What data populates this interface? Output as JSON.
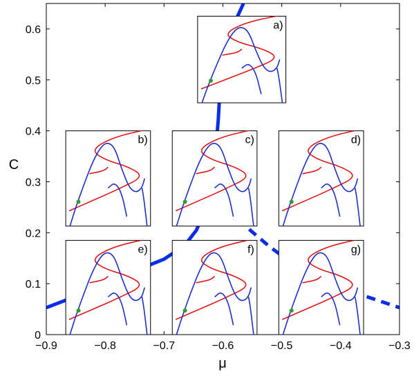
{
  "chart_data": {
    "type": "line",
    "xlabel": "μ",
    "ylabel": "C",
    "xlim": [
      -0.9,
      -0.3
    ],
    "ylim": [
      0,
      0.65
    ],
    "xticks": [
      {
        "v": -0.9,
        "label": "−0.9"
      },
      {
        "v": -0.8,
        "label": "−0.8"
      },
      {
        "v": -0.7,
        "label": "−0.7"
      },
      {
        "v": -0.6,
        "label": "−0.6"
      },
      {
        "v": -0.5,
        "label": "−0.5"
      },
      {
        "v": -0.4,
        "label": "−0.4"
      },
      {
        "v": -0.3,
        "label": "−0.3"
      }
    ],
    "yticks": [
      {
        "v": 0,
        "label": "0"
      },
      {
        "v": 0.1,
        "label": "0.1"
      },
      {
        "v": 0.2,
        "label": "0.2"
      },
      {
        "v": 0.3,
        "label": "0.3"
      },
      {
        "v": 0.4,
        "label": "0.4"
      },
      {
        "v": 0.5,
        "label": "0.5"
      },
      {
        "v": 0.6,
        "label": "0.6"
      }
    ],
    "series": [
      {
        "style": "solid",
        "color": "#0a2ee6",
        "points": [
          [
            -0.9,
            0.053
          ],
          [
            -0.85,
            0.075
          ],
          [
            -0.8,
            0.1
          ],
          [
            -0.75,
            0.125
          ],
          [
            -0.7,
            0.148
          ],
          [
            -0.665,
            0.175
          ],
          [
            -0.645,
            0.205
          ],
          [
            -0.63,
            0.245
          ],
          [
            -0.62,
            0.29
          ],
          [
            -0.613,
            0.35
          ],
          [
            -0.608,
            0.42
          ],
          [
            -0.604,
            0.5
          ],
          [
            -0.6,
            0.55
          ],
          [
            -0.585,
            0.6
          ],
          [
            -0.565,
            0.65
          ]
        ]
      },
      {
        "style": "dashed",
        "color": "#0a2ee6",
        "points": [
          [
            -0.575,
            0.226
          ],
          [
            -0.52,
            0.172
          ],
          [
            -0.47,
            0.13
          ],
          [
            -0.42,
            0.102
          ],
          [
            -0.37,
            0.08
          ],
          [
            -0.3,
            0.053
          ]
        ]
      }
    ],
    "point_color": "#2e9e2e",
    "curve_colors": {
      "red": "#e01616",
      "blue": "#1c2fc8"
    },
    "insets": [
      {
        "label": "a)",
        "x0": -0.643,
        "x1": -0.493,
        "y0": 0.455,
        "y1": 0.625
      },
      {
        "label": "b)",
        "x0": -0.867,
        "x1": -0.723,
        "y0": 0.213,
        "y1": 0.4
      },
      {
        "label": "c)",
        "x0": -0.686,
        "x1": -0.542,
        "y0": 0.213,
        "y1": 0.4
      },
      {
        "label": "d)",
        "x0": -0.505,
        "x1": -0.361,
        "y0": 0.213,
        "y1": 0.4
      },
      {
        "label": "e)",
        "x0": -0.867,
        "x1": -0.723,
        "y0": 0.0,
        "y1": 0.185
      },
      {
        "label": "f)",
        "x0": -0.686,
        "x1": -0.542,
        "y0": 0.0,
        "y1": 0.185
      },
      {
        "label": "g)",
        "x0": -0.505,
        "x1": -0.361,
        "y0": 0.0,
        "y1": 0.185
      }
    ]
  }
}
